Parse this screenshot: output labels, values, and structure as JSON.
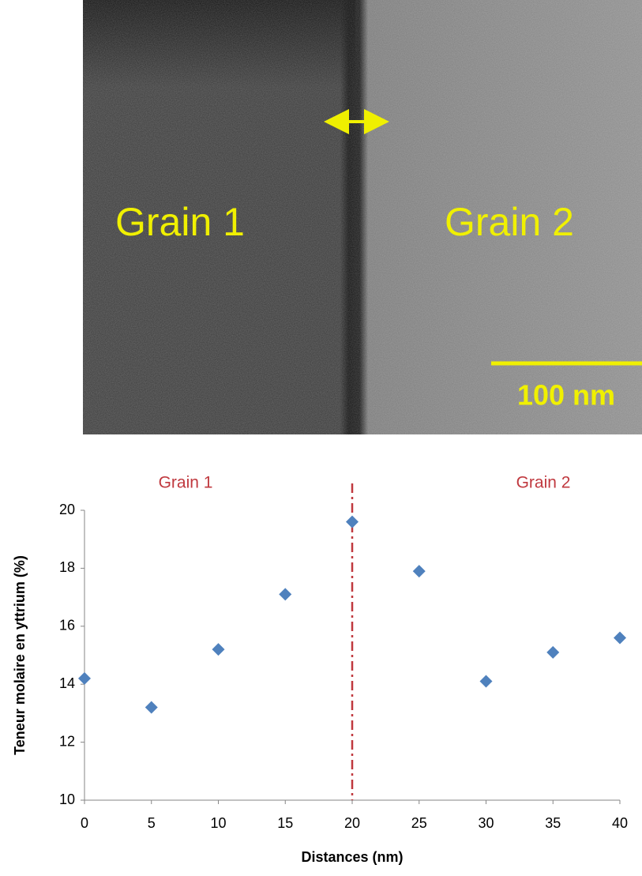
{
  "image": {
    "labels": [
      "Grain 1",
      "Grain 2"
    ],
    "scale_bar": "100 nm"
  },
  "chart_data": {
    "type": "scatter",
    "x_label": "Distances (nm)",
    "y_label": "Teneur molaire en yttrium (%)",
    "annotations": [
      "Grain 1",
      "Grain 2"
    ],
    "vline": 20,
    "vline_color": "#c0393f",
    "x": [
      0,
      5,
      10,
      15,
      20,
      25,
      30,
      35,
      40
    ],
    "values": [
      14.2,
      13.2,
      15.2,
      17.1,
      19.6,
      17.9,
      14.1,
      15.1,
      15.6
    ],
    "color": "#4f81bd",
    "xlim": [
      0,
      40
    ],
    "xticks": [
      0,
      5,
      10,
      15,
      20,
      25,
      30,
      35,
      40
    ],
    "ylim": [
      10,
      20
    ],
    "yticks": [
      10,
      12,
      14,
      16,
      18,
      20
    ],
    "grid": false
  }
}
